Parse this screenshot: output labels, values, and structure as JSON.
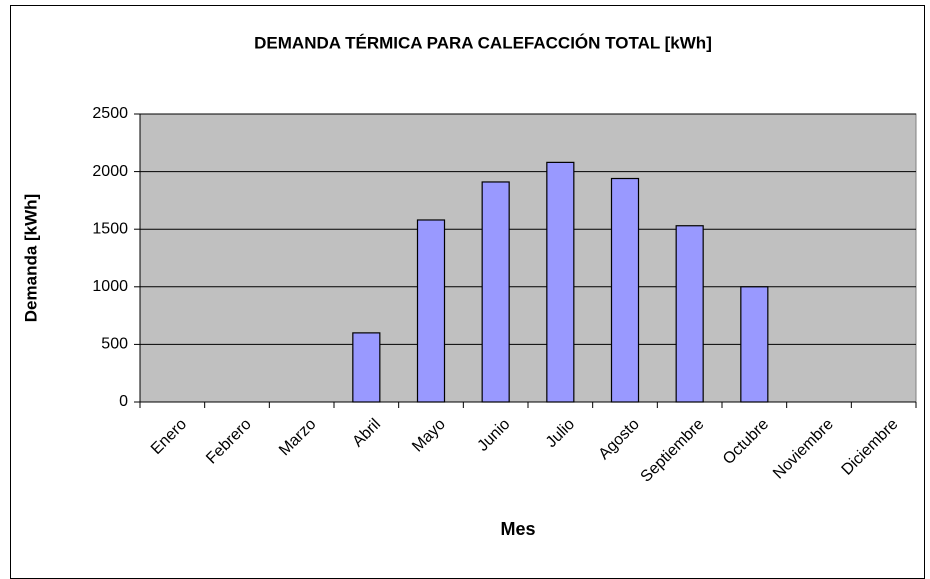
{
  "chart_data": {
    "type": "bar",
    "title": "DEMANDA TÉRMICA PARA CALEFACCIÓN TOTAL [kWh]",
    "x_label": "Mes",
    "y_label": "Demanda [kWh]",
    "categories": [
      "Enero",
      "Febrero",
      "Marzo",
      "Abril",
      "Mayo",
      "Junio",
      "Julio",
      "Agosto",
      "Septiembre",
      "Octubre",
      "Noviembre",
      "Diciembre"
    ],
    "values": [
      0,
      0,
      0,
      600,
      1580,
      1910,
      2080,
      1940,
      1530,
      1000,
      0,
      0
    ],
    "color": "#9999ff",
    "ylim": [
      0,
      2500
    ],
    "yticks": [
      0,
      500,
      1000,
      1500,
      2000,
      2500
    ],
    "grid": true
  }
}
